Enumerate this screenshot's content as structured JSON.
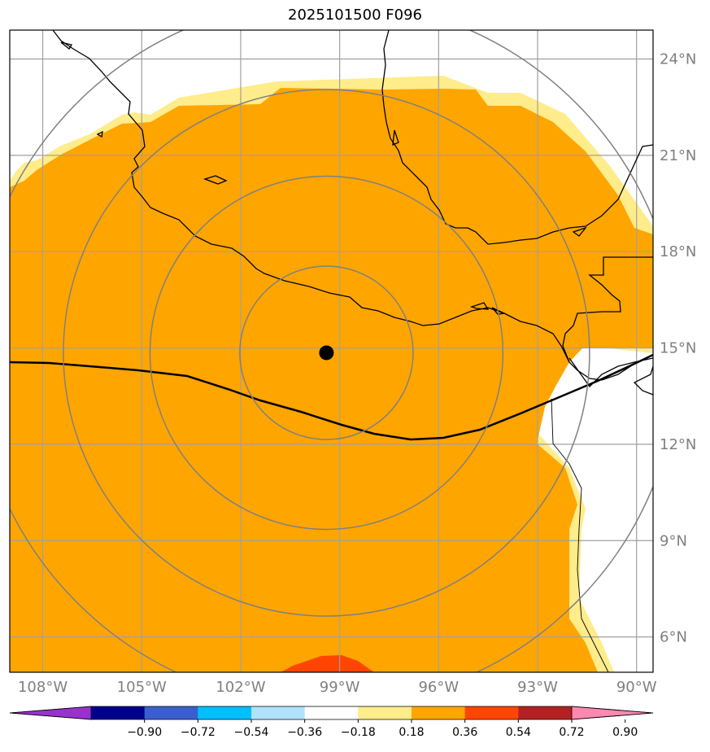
{
  "title": "2025101500 F096",
  "map": {
    "lon_range": [
      -109,
      -89.5
    ],
    "lat_range": [
      4.9,
      24.9
    ],
    "lon_ticks": [
      {
        "value": -108,
        "label": "108°W"
      },
      {
        "value": -105,
        "label": "105°W"
      },
      {
        "value": -102,
        "label": "102°W"
      },
      {
        "value": -99,
        "label": "99°W"
      },
      {
        "value": -96,
        "label": "96°W"
      },
      {
        "value": -93,
        "label": "93°W"
      },
      {
        "value": -90,
        "label": "90°W"
      }
    ],
    "lat_ticks": [
      {
        "value": 6,
        "label": "6°N"
      },
      {
        "value": 9,
        "label": "9°N"
      },
      {
        "value": 12,
        "label": "12°N"
      },
      {
        "value": 15,
        "label": "15°N"
      },
      {
        "value": 18,
        "label": "18°N"
      },
      {
        "value": 21,
        "label": "21°N"
      },
      {
        "value": 24,
        "label": "24°N"
      }
    ],
    "center_marker": {
      "lon": -99.4,
      "lat": 14.85
    },
    "range_rings_deg_lat": [
      2.7,
      5.5,
      8.2,
      11.0
    ],
    "grid": true
  },
  "colorbar": {
    "extend": "both",
    "ticks": [
      "−0.90",
      "−0.72",
      "−0.54",
      "−0.36",
      "−0.18",
      "0.18",
      "0.36",
      "0.54",
      "0.72",
      "0.90"
    ],
    "colors": [
      "#9932cc",
      "#00008b",
      "#3a5fcd",
      "#00bfff",
      "#b0e2ff",
      "#ffffff",
      "#ffec8b",
      "#ffa500",
      "#ff4500",
      "#b22222",
      "#ff88b0"
    ]
  },
  "fill": {
    "main": "#ffa500",
    "edge": "#ffec8b",
    "high": "#ff4500",
    "outside": "#ffffff"
  }
}
